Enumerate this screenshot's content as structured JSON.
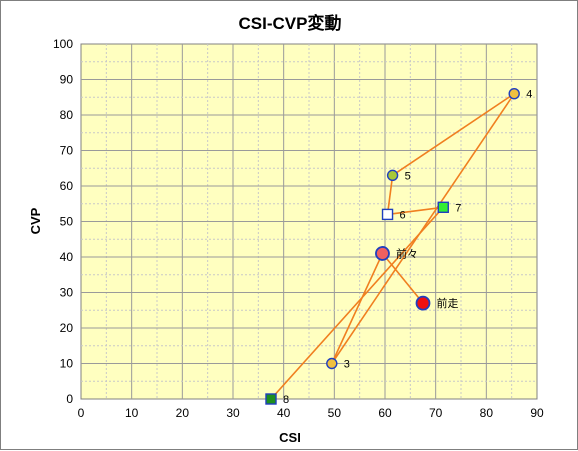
{
  "chart_data": {
    "type": "scatter",
    "title": "CSI-CVP変動",
    "xlabel": "CSI",
    "ylabel": "CVP",
    "xlim": [
      0,
      90
    ],
    "ylim": [
      0,
      100
    ],
    "x_ticks": [
      0,
      10,
      20,
      30,
      40,
      50,
      60,
      70,
      80,
      90
    ],
    "y_ticks": [
      0,
      10,
      20,
      30,
      40,
      50,
      60,
      70,
      80,
      90,
      100
    ],
    "grid": true,
    "plot_background": "#ffffc0",
    "line_color": "#f07f20",
    "points": [
      {
        "label": "8",
        "x": 37.5,
        "y": 0,
        "marker": "square",
        "fill": "#1f8f1f",
        "stroke": "#1f3fbf"
      },
      {
        "label": "7",
        "x": 71.5,
        "y": 54,
        "marker": "square",
        "fill": "#33ee33",
        "stroke": "#1f3fbf"
      },
      {
        "label": "6",
        "x": 60.5,
        "y": 52,
        "marker": "square",
        "fill": "#ffffff",
        "stroke": "#1f3fbf"
      },
      {
        "label": "5",
        "x": 61.5,
        "y": 63,
        "marker": "circle",
        "fill": "#a8c838",
        "stroke": "#1f3fbf"
      },
      {
        "label": "4",
        "x": 85.5,
        "y": 86,
        "marker": "circle",
        "fill": "#f0c040",
        "stroke": "#1f3fbf"
      },
      {
        "label": "3",
        "x": 49.5,
        "y": 10,
        "marker": "circle",
        "fill": "#f0c040",
        "stroke": "#1f3fbf"
      },
      {
        "label": "前々",
        "x": 59.5,
        "y": 41,
        "marker": "circle-large",
        "fill": "#f06060",
        "stroke": "#1f3fbf"
      },
      {
        "label": "前走",
        "x": 67.5,
        "y": 27,
        "marker": "circle-large",
        "fill": "#ee1111",
        "stroke": "#1f3fbf"
      }
    ],
    "connections": [
      [
        "8",
        "7"
      ],
      [
        "7",
        "6"
      ],
      [
        "6",
        "5"
      ],
      [
        "5",
        "4"
      ],
      [
        "4",
        "3"
      ],
      [
        "3",
        "前々"
      ],
      [
        "前々",
        "前走"
      ]
    ]
  }
}
